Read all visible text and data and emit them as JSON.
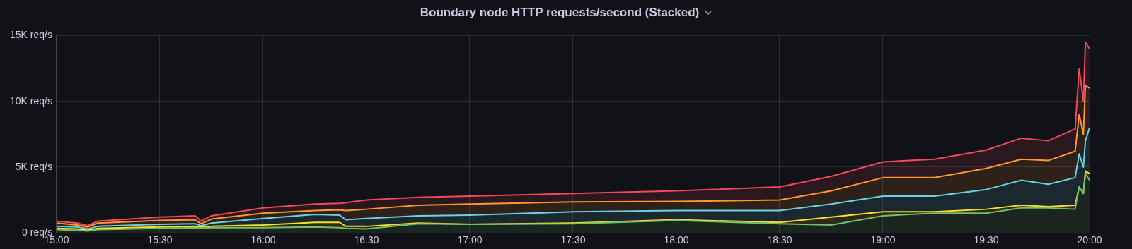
{
  "chart_data": {
    "type": "area",
    "title": "Boundary node HTTP requests/second (Stacked)",
    "stacked": true,
    "grid": true,
    "x": [
      15.0,
      15.1,
      15.15,
      15.2,
      15.5,
      15.67,
      15.7,
      15.75,
      16.0,
      16.25,
      16.37,
      16.4,
      16.5,
      16.75,
      17.0,
      17.5,
      18.0,
      18.5,
      18.75,
      19.0,
      19.25,
      19.5,
      19.67,
      19.8,
      19.93,
      19.95,
      19.97,
      19.98,
      20.0
    ],
    "xlim": [
      15,
      20
    ],
    "xticks": [
      {
        "value": 15,
        "label": "15:00"
      },
      {
        "value": 15.5,
        "label": "15:30"
      },
      {
        "value": 16,
        "label": "16:00"
      },
      {
        "value": 16.5,
        "label": "16:30"
      },
      {
        "value": 17,
        "label": "17:00"
      },
      {
        "value": 17.5,
        "label": "17:30"
      },
      {
        "value": 18,
        "label": "18:00"
      },
      {
        "value": 18.5,
        "label": "18:30"
      },
      {
        "value": 19,
        "label": "19:00"
      },
      {
        "value": 19.5,
        "label": "19:30"
      },
      {
        "value": 20,
        "label": "20:00"
      }
    ],
    "ylim": [
      0,
      15000
    ],
    "yticks": [
      {
        "value": 0,
        "label": "0 req/s"
      },
      {
        "value": 5000,
        "label": "5K req/s"
      },
      {
        "value": 10000,
        "label": "10K req/s"
      },
      {
        "value": 15000,
        "label": "15K req/s"
      }
    ],
    "series": [
      {
        "color": "#73bf69",
        "values": [
          250,
          200,
          150,
          250,
          350,
          400,
          350,
          400,
          400,
          450,
          400,
          350,
          300,
          700,
          650,
          700,
          950,
          700,
          600,
          1300,
          1500,
          1500,
          1900,
          1900,
          1800,
          3500,
          3000,
          4500,
          4000
        ]
      },
      {
        "color": "#fade2a",
        "values": [
          100,
          100,
          50,
          100,
          100,
          100,
          100,
          100,
          200,
          350,
          400,
          150,
          200,
          50,
          0,
          50,
          50,
          100,
          600,
          300,
          100,
          300,
          200,
          100,
          300,
          0,
          0,
          200,
          500
        ]
      },
      {
        "color": "#6ed0e0",
        "values": [
          150,
          150,
          100,
          150,
          200,
          200,
          100,
          250,
          500,
          600,
          550,
          500,
          600,
          550,
          700,
          850,
          700,
          900,
          1000,
          1200,
          1200,
          1500,
          1900,
          1700,
          2100,
          2500,
          2000,
          2300,
          3500
        ]
      },
      {
        "color": "#ff9830",
        "values": [
          250,
          150,
          150,
          250,
          300,
          300,
          150,
          300,
          400,
          300,
          400,
          700,
          700,
          800,
          850,
          750,
          700,
          800,
          1000,
          1400,
          1400,
          1600,
          1600,
          1800,
          2000,
          3000,
          2500,
          4200,
          3000
        ]
      },
      {
        "color": "#f2495c",
        "values": [
          150,
          150,
          100,
          150,
          250,
          300,
          200,
          250,
          400,
          500,
          500,
          600,
          700,
          600,
          600,
          650,
          800,
          1000,
          1100,
          1200,
          1400,
          1400,
          1600,
          1500,
          1700,
          3500,
          2500,
          3300,
          3000
        ]
      }
    ]
  }
}
